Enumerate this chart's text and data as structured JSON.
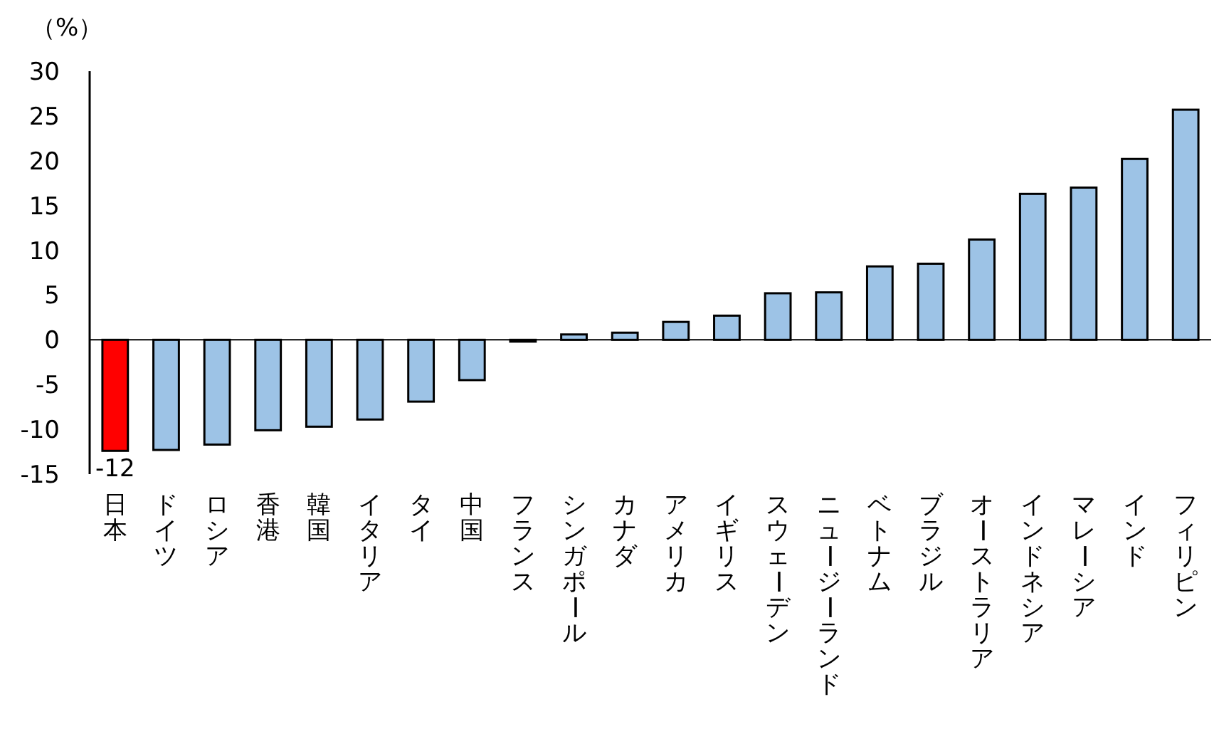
{
  "chart_data": {
    "type": "bar",
    "ylabel": "（%）",
    "categories": [
      "日本",
      "ドイツ",
      "ロシア",
      "香港",
      "韓国",
      "イタリア",
      "タイ",
      "中国",
      "フランス",
      "シンガポール",
      "カナダ",
      "アメリカ",
      "イギリス",
      "スウェーデン",
      "ニュージーランド",
      "ベトナム",
      "ブラジル",
      "オーストラリア",
      "インドネシア",
      "マレーシア",
      "インド",
      "フィリピン"
    ],
    "values": [
      -12.4,
      -12.3,
      -11.7,
      -10.1,
      -9.7,
      -8.9,
      -6.9,
      -4.5,
      -0.2,
      0.6,
      0.8,
      2.0,
      2.7,
      5.2,
      5.3,
      8.2,
      8.5,
      11.2,
      16.3,
      17.0,
      20.2,
      25.7
    ],
    "colors": [
      "#ff0000",
      "#9dc3e6",
      "#9dc3e6",
      "#9dc3e6",
      "#9dc3e6",
      "#9dc3e6",
      "#9dc3e6",
      "#9dc3e6",
      "#9dc3e6",
      "#9dc3e6",
      "#9dc3e6",
      "#9dc3e6",
      "#9dc3e6",
      "#9dc3e6",
      "#9dc3e6",
      "#9dc3e6",
      "#9dc3e6",
      "#9dc3e6",
      "#9dc3e6",
      "#9dc3e6",
      "#9dc3e6",
      "#9dc3e6"
    ],
    "value_labels": [
      "-12",
      null,
      null,
      null,
      null,
      null,
      null,
      null,
      null,
      null,
      null,
      null,
      null,
      null,
      null,
      null,
      null,
      null,
      null,
      null,
      null,
      null
    ],
    "ylim": [
      -15,
      30
    ],
    "yticks": [
      -15,
      -10,
      -5,
      0,
      5,
      10,
      15,
      20,
      25,
      30
    ]
  }
}
